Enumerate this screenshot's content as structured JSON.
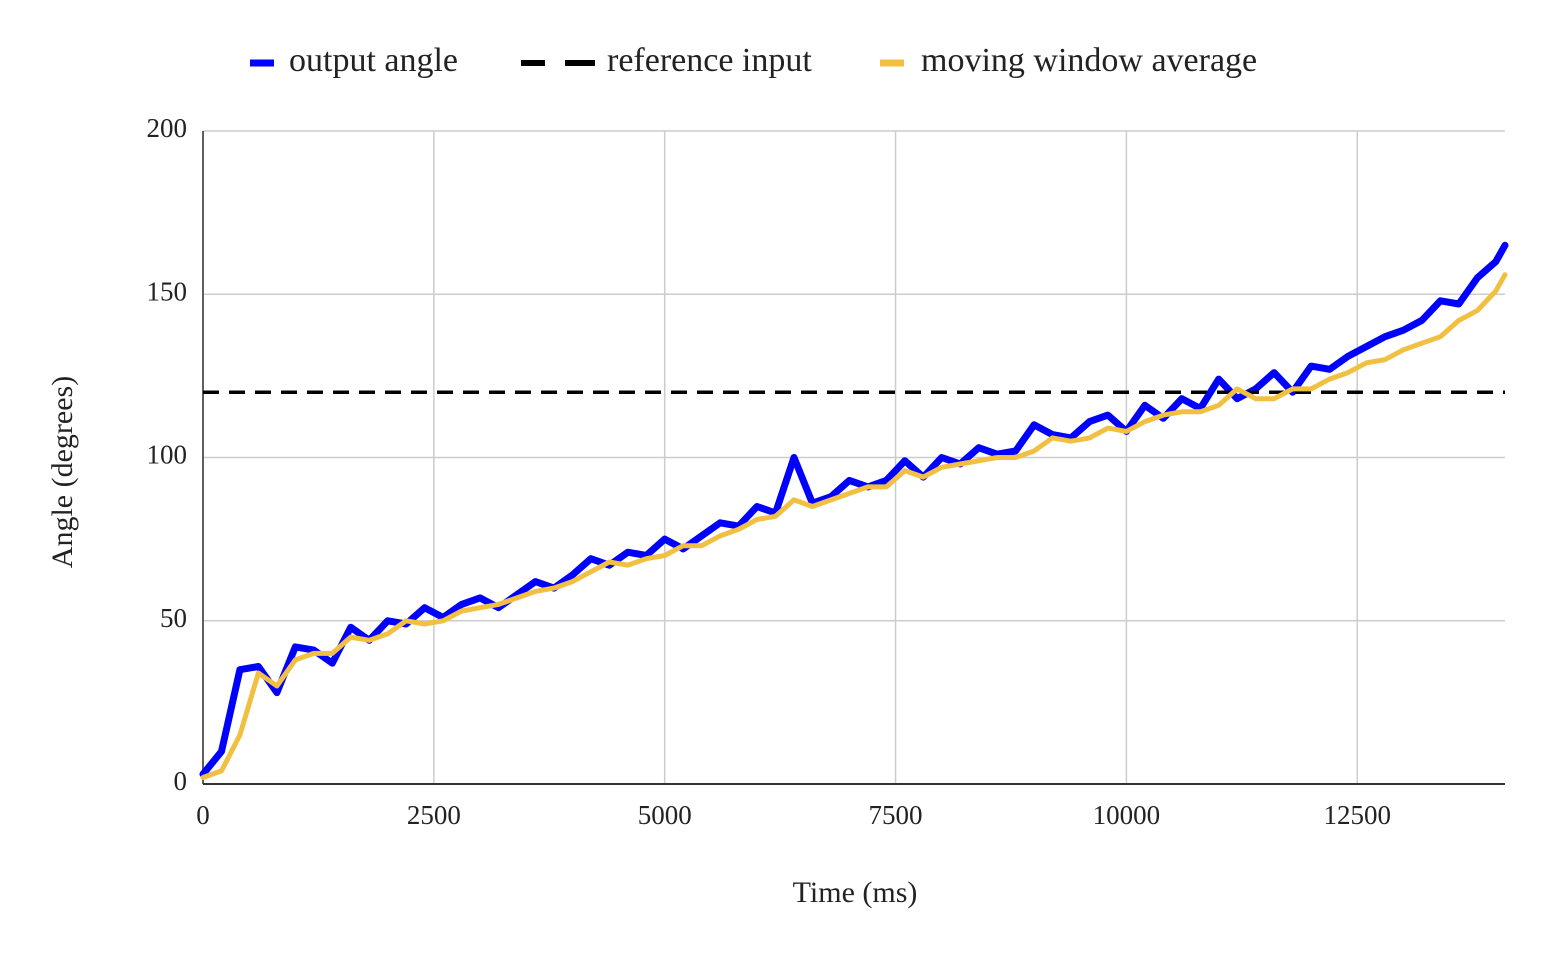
{
  "chart_data": {
    "type": "line",
    "x_label": "Time (ms)",
    "y_label": "Angle (degrees)",
    "x": [
      0,
      200,
      400,
      600,
      800,
      1000,
      1200,
      1400,
      1600,
      1800,
      2000,
      2200,
      2400,
      2600,
      2800,
      3000,
      3200,
      3400,
      3600,
      3800,
      4000,
      4200,
      4400,
      4600,
      4800,
      5000,
      5200,
      5400,
      5600,
      5800,
      6000,
      6200,
      6400,
      6600,
      6800,
      7000,
      7200,
      7400,
      7600,
      7800,
      8000,
      8200,
      8400,
      8600,
      8800,
      9000,
      9200,
      9400,
      9600,
      9800,
      10000,
      10200,
      10400,
      10600,
      10800,
      11000,
      11200,
      11400,
      11600,
      11800,
      12000,
      12200,
      12400,
      12600,
      12800,
      13000,
      13200,
      13400,
      13600,
      13800,
      14000,
      14100
    ],
    "series": [
      {
        "name": "output angle",
        "color": "#0000ff",
        "line_style": "solid",
        "values": [
          3,
          10,
          35,
          36,
          28,
          42,
          41,
          37,
          48,
          44,
          50,
          49,
          54,
          51,
          55,
          57,
          54,
          58,
          62,
          60,
          64,
          69,
          67,
          71,
          70,
          75,
          72,
          76,
          80,
          79,
          85,
          83,
          100,
          86,
          88,
          93,
          91,
          93,
          99,
          94,
          100,
          98,
          103,
          101,
          102,
          110,
          107,
          106,
          111,
          113,
          108,
          116,
          112,
          118,
          115,
          124,
          118,
          121,
          126,
          120,
          128,
          127,
          131,
          134,
          137,
          139,
          142,
          148,
          147,
          155,
          160,
          165
        ]
      },
      {
        "name": "reference input",
        "color": "#000000",
        "line_style": "dashed",
        "values": [
          120,
          120,
          120,
          120,
          120,
          120,
          120,
          120,
          120,
          120,
          120,
          120,
          120,
          120,
          120,
          120,
          120,
          120,
          120,
          120,
          120,
          120,
          120,
          120,
          120,
          120,
          120,
          120,
          120,
          120,
          120,
          120,
          120,
          120,
          120,
          120,
          120,
          120,
          120,
          120,
          120,
          120,
          120,
          120,
          120,
          120,
          120,
          120,
          120,
          120,
          120,
          120,
          120,
          120,
          120,
          120,
          120,
          120,
          120,
          120,
          120,
          120,
          120,
          120,
          120,
          120,
          120,
          120,
          120,
          120,
          120,
          120
        ]
      },
      {
        "name": "moving window average",
        "color": "#f1c042",
        "line_style": "solid",
        "values": [
          2,
          4,
          15,
          34,
          30,
          38,
          40,
          40,
          45,
          44,
          46,
          50,
          49,
          50,
          53,
          54,
          55,
          57,
          59,
          60,
          62,
          65,
          68,
          67,
          69,
          70,
          73,
          73,
          76,
          78,
          81,
          82,
          87,
          85,
          87,
          89,
          91,
          91,
          96,
          94,
          97,
          98,
          99,
          100,
          100,
          102,
          106,
          105,
          106,
          109,
          108,
          111,
          113,
          114,
          114,
          116,
          121,
          118,
          118,
          121,
          121,
          124,
          126,
          129,
          130,
          133,
          135,
          137,
          142,
          145,
          151,
          156
        ]
      }
    ],
    "xlim": [
      0,
      14100
    ],
    "ylim": [
      0,
      200
    ],
    "xticks": [
      0,
      2500,
      5000,
      7500,
      10000,
      12500
    ],
    "yticks": [
      0,
      50,
      100,
      150,
      200
    ],
    "grid": true,
    "legend": "top"
  }
}
